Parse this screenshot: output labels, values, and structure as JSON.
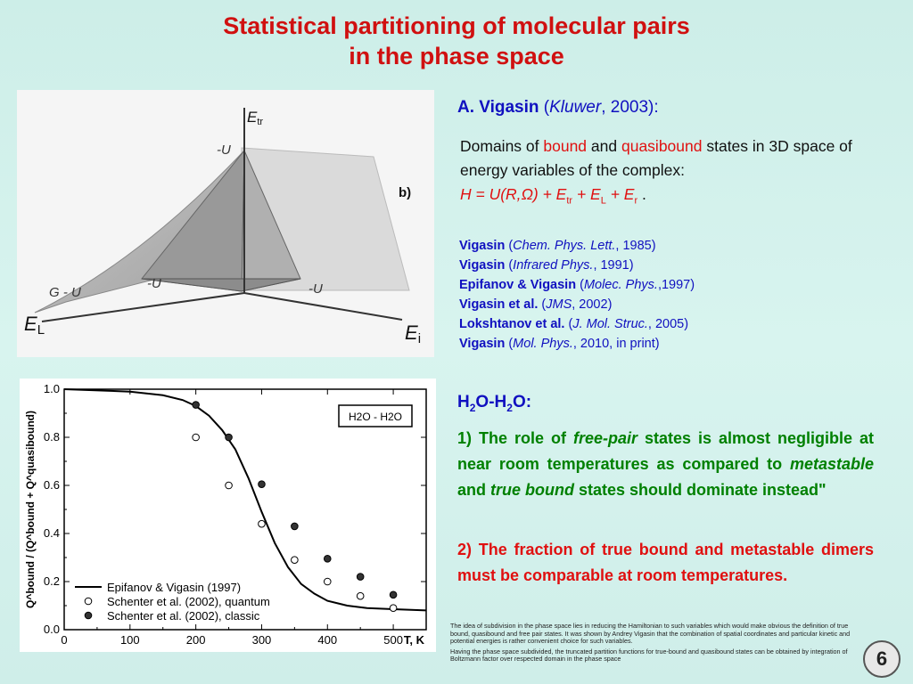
{
  "title": {
    "line1": "Statistical partitioning of molecular pairs",
    "line2": "in the phase space"
  },
  "diagram": {
    "axis_tr_label": "E",
    "axis_tr_sub": "tr",
    "axis_l_label": "E",
    "axis_l_sub": "L",
    "axis_i_label": "E",
    "axis_i_sub": "i",
    "label_top_u": "-U",
    "label_mid_u": "-U",
    "label_right_u": "-U",
    "label_gu": "G - U",
    "panel_label": "b)"
  },
  "reference": {
    "author": "A. Vigasin",
    "open": " (",
    "publisher": "Kluwer",
    "year": ", 2003):"
  },
  "description": {
    "part1": "Domains of ",
    "bound": "bound",
    "and": " and ",
    "quasibound": "quasibound",
    "part2": " states in 3D space of energy variables of the complex:",
    "formula_h": "H = U(R,",
    "formula_omega": "Ω",
    "formula_rest": ") + E",
    "sub_tr": "tr",
    "plus1": " + E",
    "sub_l": "L",
    "plus2": " + E",
    "sub_r": "r",
    "dot": " ."
  },
  "refs": [
    {
      "author": "Vigasin",
      "journal": "Chem. Phys. Lett.",
      "year": ", 1985)"
    },
    {
      "author": "Vigasin",
      "journal": "Infrared Phys.",
      "year": ", 1991)"
    },
    {
      "author": "Epifanov & Vigasin",
      "journal": "Molec. Phys.",
      "year": ",1997)"
    },
    {
      "author": "Vigasin et al.",
      "journal": "JMS",
      "year": ", 2002)"
    },
    {
      "author": "Lokshtanov et al.",
      "journal": "J. Mol. Struc.",
      "year": ", 2005)"
    },
    {
      "author": "Vigasin",
      "journal": "Mol. Phys.",
      "year": ", 2010, in print)"
    }
  ],
  "h2o": {
    "h": "H",
    "sub1": "2",
    "mid": "O-H",
    "sub2": "2",
    "end": "O:"
  },
  "point1": {
    "a": "1) The role of ",
    "free_pair": "free-pair",
    "b": " states is almost negligible at near room temperatures as compared to ",
    "metastable": "metastable",
    "c": " and ",
    "true_bound": "true bound",
    "d": " states should dominate instead\""
  },
  "point2": "2) The fraction of true bound and metastable dimers must be comparable at room temperatures.",
  "footnote": {
    "p1": "The idea of subdivision in the phase space lies in reducing the Hamiltonian to such variables which would make obvious the definition of true bound, quasibound and free pair states.   It was shown by Andrey Vigasin that the combination of spatial coordinates and particular kinetic and potential energies is rather convenient choice for such variables.",
    "p2": "Having the phase space subdivided, the truncated partition functions for true-bound and quasibound states can be obtained by integration of Boltzmann factor over respected domain in the phase space"
  },
  "page_number": "6",
  "chart_data": {
    "type": "scatter",
    "title": "",
    "inset_label": "H2O - H2O",
    "xlabel": "T, K",
    "ylabel": "Q^bound / (Q^bound + Q^quasibound)",
    "xlim": [
      0,
      550
    ],
    "ylim": [
      0.0,
      1.0
    ],
    "xticks": [
      0,
      100,
      200,
      300,
      400,
      500
    ],
    "xtick_labels": [
      "0",
      "100",
      "200",
      "300",
      "400",
      "500"
    ],
    "yticks": [
      0.0,
      0.2,
      0.4,
      0.6,
      0.8,
      1.0
    ],
    "ytick_labels": [
      "0.0",
      "0.2",
      "0.4",
      "0.6",
      "0.8",
      "1.0"
    ],
    "legend_position": "bottom-left",
    "series": [
      {
        "name": "Epifanov & Vigasin (1997)",
        "kind": "line",
        "x": [
          0,
          100,
          150,
          180,
          200,
          220,
          240,
          260,
          280,
          300,
          320,
          340,
          360,
          380,
          400,
          430,
          460,
          500,
          550
        ],
        "y": [
          1.0,
          0.99,
          0.975,
          0.955,
          0.93,
          0.89,
          0.83,
          0.75,
          0.63,
          0.49,
          0.36,
          0.26,
          0.19,
          0.15,
          0.12,
          0.1,
          0.09,
          0.085,
          0.08
        ]
      },
      {
        "name": "Schenter et al. (2002), quantum",
        "kind": "open-circle",
        "x": [
          200,
          250,
          300,
          350,
          400,
          450,
          500
        ],
        "y": [
          0.8,
          0.6,
          0.44,
          0.29,
          0.2,
          0.14,
          0.09
        ]
      },
      {
        "name": "Schenter et al. (2002), classic",
        "kind": "filled-circle",
        "x": [
          200,
          250,
          300,
          350,
          400,
          450,
          500
        ],
        "y": [
          0.935,
          0.8,
          0.605,
          0.43,
          0.295,
          0.22,
          0.145
        ]
      }
    ]
  }
}
